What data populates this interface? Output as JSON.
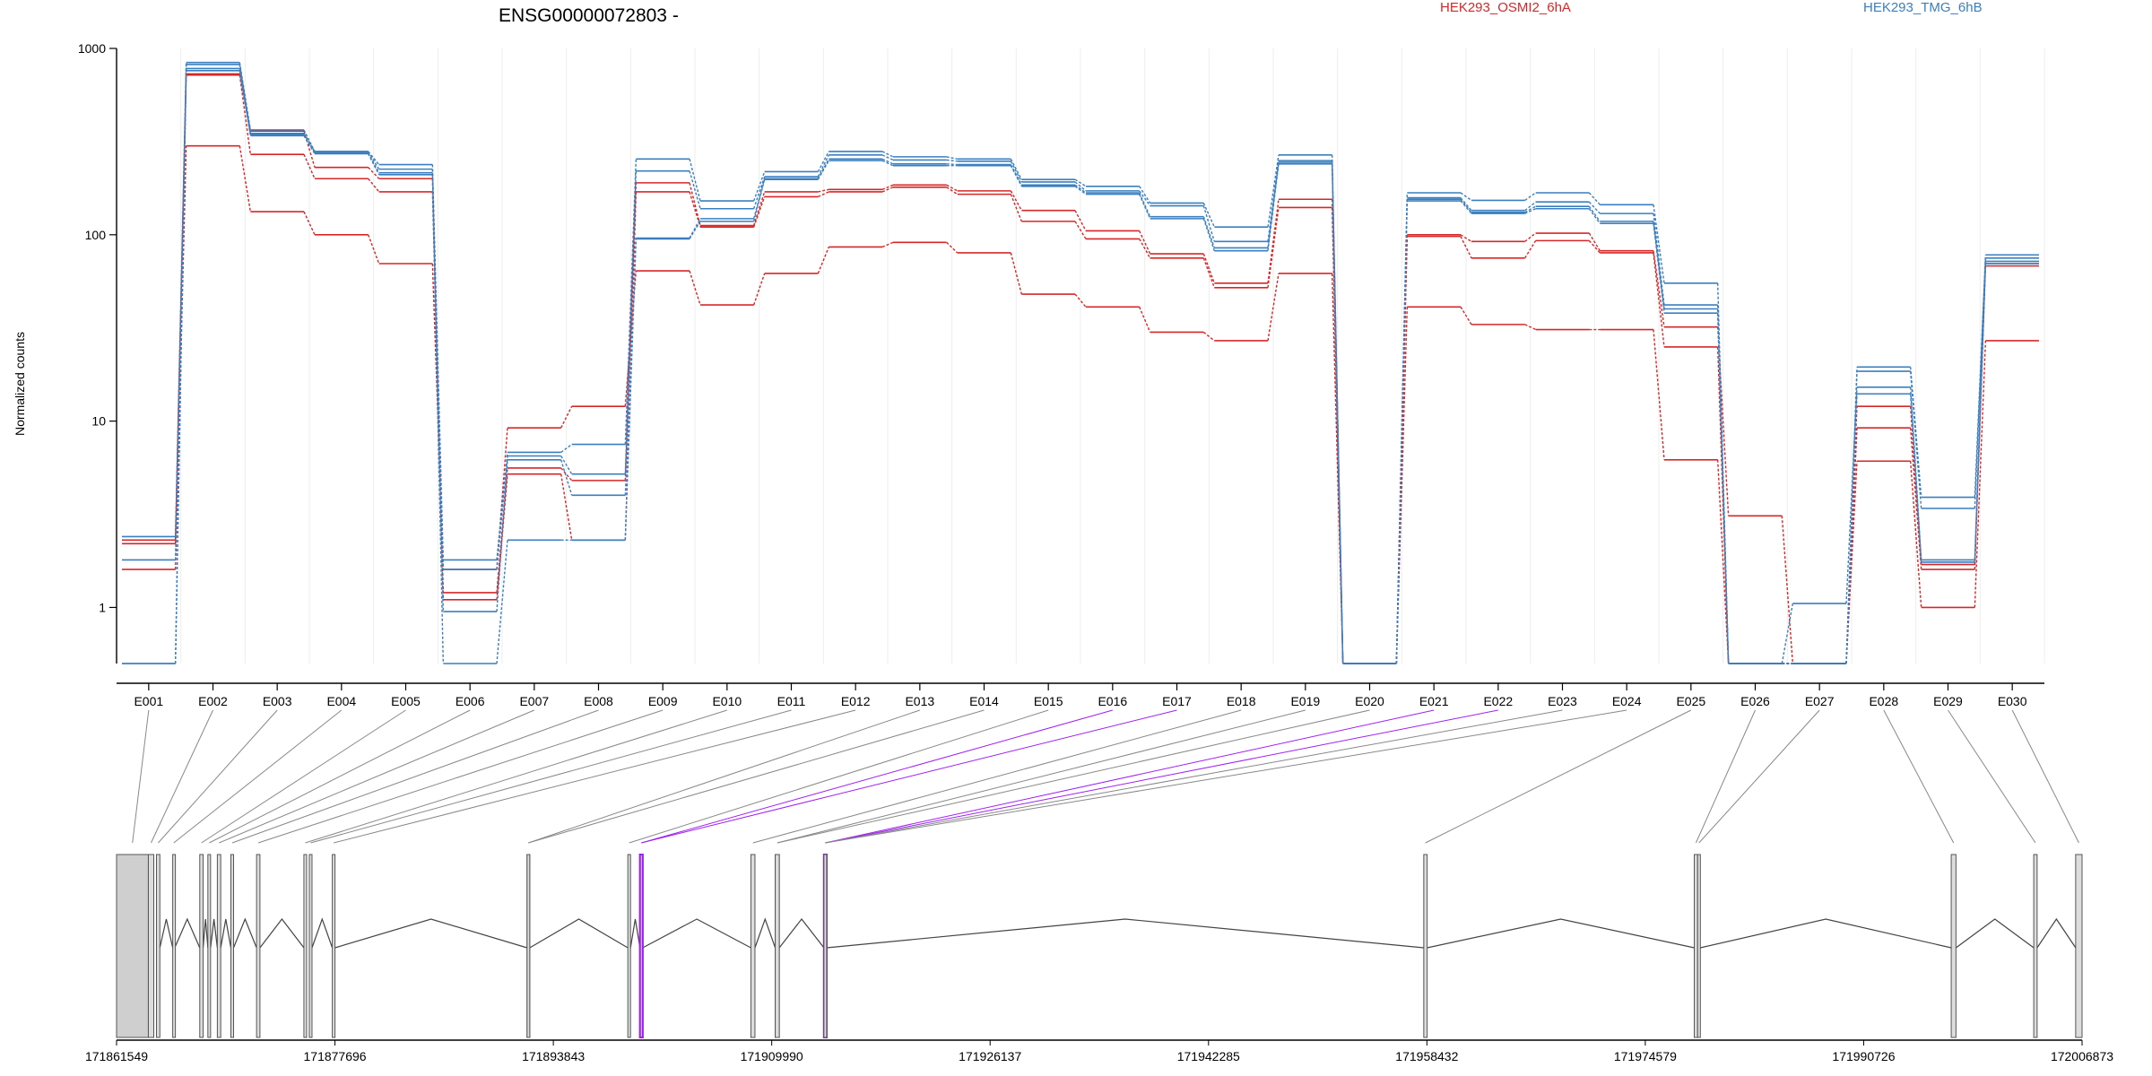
{
  "chart_data": {
    "type": "line",
    "title": "ENSG00000072803 -",
    "ylabel": "Normalized counts",
    "yscale": "log",
    "ylim": [
      0.5,
      1000
    ],
    "yticks": [
      1,
      10,
      100,
      1000
    ],
    "grid": "vertical-light",
    "legend_placement": "top",
    "categories": [
      "E001",
      "E002",
      "E003",
      "E004",
      "E005",
      "E006",
      "E007",
      "E008",
      "E009",
      "E010",
      "E011",
      "E012",
      "E013",
      "E014",
      "E015",
      "E016",
      "E017",
      "E018",
      "E019",
      "E020",
      "E021",
      "E022",
      "E023",
      "E024",
      "E025",
      "E026",
      "E027",
      "E028",
      "E029",
      "E030"
    ],
    "groups": [
      {
        "name": "HEK293_OSMI2_6hA",
        "color": "#d62728"
      },
      {
        "name": "HEK293_TMG_6hB",
        "color": "#3a7fbf"
      }
    ],
    "series": [
      {
        "group": "HEK293_OSMI2_6hA",
        "values": [
          2.3,
          730,
          360,
          230,
          200,
          1.2,
          5.6,
          4.8,
          190,
          112,
          170,
          175,
          185,
          172,
          135,
          105,
          79,
          55,
          155,
          0.5,
          100,
          92,
          102,
          82,
          32,
          3.1,
          0.5,
          12,
          1.7,
          70
        ]
      },
      {
        "group": "HEK293_OSMI2_6hA",
        "values": [
          2.2,
          720,
          270,
          200,
          170,
          1.1,
          5.2,
          2.3,
          170,
          110,
          160,
          170,
          180,
          165,
          118,
          95,
          75,
          52,
          140,
          0.5,
          98,
          75,
          93,
          80,
          25,
          0.5,
          0.5,
          9.2,
          1.6,
          68
        ]
      },
      {
        "group": "HEK293_OSMI2_6hA",
        "values": [
          1.6,
          300,
          133,
          100,
          70,
          1.6,
          9.2,
          12,
          64,
          42,
          62,
          86,
          91,
          80,
          48,
          41,
          30,
          27,
          62,
          0.5,
          41,
          33,
          31,
          31,
          6.2,
          0.5,
          0.5,
          6.1,
          1.0,
          27
        ]
      },
      {
        "group": "HEK293_TMG_6hB",
        "values": [
          2.4,
          840,
          365,
          280,
          238,
          1.8,
          6.8,
          7.5,
          255,
          152,
          218,
          280,
          262,
          255,
          198,
          182,
          148,
          110,
          268,
          0.5,
          168,
          153,
          168,
          145,
          55,
          0.5,
          0.5,
          19.5,
          3.9,
          78
        ]
      },
      {
        "group": "HEK293_TMG_6hB",
        "values": [
          1.8,
          820,
          350,
          280,
          225,
          1.6,
          6.5,
          5.2,
          220,
          138,
          205,
          268,
          252,
          248,
          192,
          172,
          143,
          92,
          250,
          0.5,
          158,
          135,
          150,
          130,
          42,
          0.5,
          0.5,
          18.5,
          3.4,
          75
        ]
      },
      {
        "group": "HEK293_TMG_6hB",
        "values": [
          0.5,
          780,
          345,
          275,
          215,
          0.95,
          6.2,
          4.0,
          96,
          122,
          200,
          255,
          240,
          238,
          185,
          168,
          125,
          85,
          245,
          0.5,
          155,
          132,
          142,
          118,
          40,
          0.5,
          1.05,
          15.2,
          1.8,
          72
        ]
      },
      {
        "group": "HEK293_TMG_6hB",
        "values": [
          0.5,
          760,
          340,
          272,
          210,
          0.5,
          2.3,
          2.3,
          95,
          118,
          198,
          250,
          235,
          235,
          182,
          165,
          122,
          82,
          240,
          0.5,
          152,
          130,
          138,
          115,
          38,
          0.5,
          0.5,
          14,
          1.75,
          70
        ]
      }
    ],
    "gene_model": {
      "genomic_range": [
        171861549,
        172006873
      ],
      "genomic_ticks": [
        171861549,
        171877696,
        171893843,
        171909990,
        171926137,
        171942285,
        171958432,
        171974579,
        171990726,
        172006873
      ],
      "exons": [
        {
          "id": "E001",
          "start": 171861549,
          "end": 171863900
        },
        {
          "id": "E002",
          "start": 171863900,
          "end": 171864300
        },
        {
          "id": "E003",
          "start": 171864500,
          "end": 171864750
        },
        {
          "id": "E004",
          "start": 171865700,
          "end": 171865850
        },
        {
          "id": "E005",
          "start": 171867700,
          "end": 171867950
        },
        {
          "id": "E006",
          "start": 171868300,
          "end": 171868500
        },
        {
          "id": "E007",
          "start": 171869000,
          "end": 171869250
        },
        {
          "id": "E008",
          "start": 171870000,
          "end": 171870200
        },
        {
          "id": "E009",
          "start": 171871900,
          "end": 171872150
        },
        {
          "id": "E010",
          "start": 171875400,
          "end": 171875600
        },
        {
          "id": "E011",
          "start": 171875800,
          "end": 171876000
        },
        {
          "id": "E012",
          "start": 171877500,
          "end": 171877700
        },
        {
          "id": "E013",
          "start": 171891900,
          "end": 171892100
        },
        {
          "id": "E014",
          "start": 171891900,
          "end": 171892100
        },
        {
          "id": "E015",
          "start": 171899350,
          "end": 171899550
        },
        {
          "id": "E016",
          "start": 171900250,
          "end": 171900450
        },
        {
          "id": "E017",
          "start": 171900250,
          "end": 171900450
        },
        {
          "id": "E018",
          "start": 171908450,
          "end": 171908750
        },
        {
          "id": "E019",
          "start": 171910250,
          "end": 171910550
        },
        {
          "id": "E020",
          "start": 171910250,
          "end": 171910550
        },
        {
          "id": "E021",
          "start": 171913850,
          "end": 171914050
        },
        {
          "id": "E022",
          "start": 171913850,
          "end": 171914050
        },
        {
          "id": "E023",
          "start": 171913850,
          "end": 171914050
        },
        {
          "id": "E024",
          "start": 171913850,
          "end": 171914050
        },
        {
          "id": "E025",
          "start": 171958200,
          "end": 171958450
        },
        {
          "id": "E026",
          "start": 171978200,
          "end": 171978450
        },
        {
          "id": "E027",
          "start": 171978450,
          "end": 171978650
        },
        {
          "id": "E028",
          "start": 171997200,
          "end": 171997550
        },
        {
          "id": "E029",
          "start": 172003300,
          "end": 172003550
        },
        {
          "id": "E030",
          "start": 172006400,
          "end": 172006873
        }
      ],
      "highlighted_exons": [
        "E016",
        "E017",
        "E021",
        "E022"
      ],
      "highlight_color": "#a020f0"
    }
  }
}
